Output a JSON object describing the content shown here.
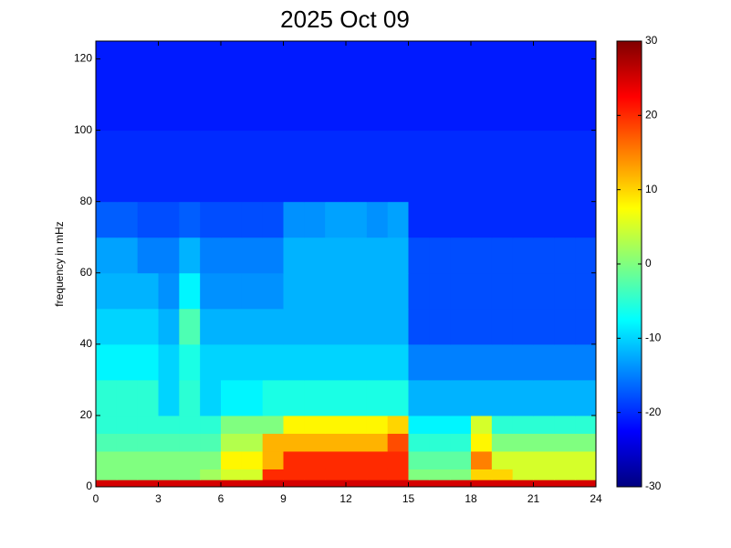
{
  "chart_data": {
    "type": "heatmap",
    "title": "2025 Oct 09",
    "y_label": "frequency in mHz",
    "colormap": "jet",
    "xbins": [
      0,
      1,
      2,
      3,
      4,
      5,
      6,
      7,
      8,
      9,
      10,
      11,
      12,
      13,
      14,
      15,
      16,
      17,
      18,
      19,
      20,
      21,
      22,
      23,
      24
    ],
    "ybins": [
      0,
      2,
      5,
      10,
      15,
      20,
      30,
      40,
      50,
      60,
      70,
      80,
      100,
      125
    ],
    "values": [
      [
        25,
        25,
        25,
        25,
        25,
        25,
        25,
        25,
        25,
        25,
        25,
        25,
        25,
        25,
        25,
        25,
        25,
        25,
        25,
        25,
        25,
        25,
        25,
        25
      ],
      [
        0,
        0,
        0,
        0,
        0,
        2,
        5,
        5,
        20,
        20,
        20,
        20,
        20,
        20,
        20,
        0,
        0,
        0,
        10,
        10,
        5,
        5,
        5,
        5
      ],
      [
        0,
        0,
        0,
        0,
        0,
        0,
        8,
        8,
        12,
        20,
        20,
        20,
        20,
        20,
        20,
        -2,
        -2,
        -2,
        15,
        5,
        5,
        5,
        5,
        5
      ],
      [
        -3,
        -3,
        -3,
        -3,
        -3,
        -3,
        3,
        3,
        12,
        12,
        12,
        12,
        12,
        12,
        18,
        -5,
        -5,
        -5,
        8,
        0,
        0,
        0,
        0,
        0
      ],
      [
        -5,
        -5,
        -5,
        -5,
        -5,
        -5,
        0,
        0,
        0,
        8,
        8,
        8,
        8,
        8,
        10,
        -8,
        -8,
        -8,
        5,
        -5,
        -5,
        -5,
        -5,
        -5
      ],
      [
        -5,
        -5,
        -5,
        -10,
        -5,
        -10,
        -8,
        -8,
        -6,
        -6,
        -6,
        -6,
        -6,
        -6,
        -6,
        -12,
        -12,
        -12,
        -12,
        -12,
        -12,
        -12,
        -12,
        -12
      ],
      [
        -8,
        -8,
        -8,
        -10,
        -6,
        -10,
        -10,
        -10,
        -10,
        -10,
        -10,
        -10,
        -10,
        -10,
        -10,
        -15,
        -15,
        -15,
        -15,
        -15,
        -15,
        -15,
        -15,
        -15
      ],
      [
        -10,
        -10,
        -10,
        -12,
        -3,
        -12,
        -12,
        -12,
        -12,
        -12,
        -12,
        -12,
        -12,
        -12,
        -12,
        -18,
        -18,
        -18,
        -18,
        -18,
        -18,
        -18,
        -18,
        -18
      ],
      [
        -12,
        -12,
        -12,
        -14,
        -8,
        -14,
        -14,
        -14,
        -14,
        -12,
        -12,
        -12,
        -12,
        -12,
        -12,
        -18,
        -18,
        -18,
        -18,
        -18,
        -18,
        -18,
        -18,
        -18
      ],
      [
        -13,
        -13,
        -15,
        -15,
        -12,
        -15,
        -15,
        -15,
        -15,
        -12,
        -12,
        -12,
        -12,
        -12,
        -12,
        -18,
        -18,
        -18,
        -18,
        -18,
        -18,
        -18,
        -18,
        -18
      ],
      [
        -17,
        -17,
        -18,
        -18,
        -17,
        -18,
        -18,
        -18,
        -18,
        -14,
        -14,
        -13,
        -13,
        -14,
        -13,
        -20,
        -20,
        -20,
        -20,
        -20,
        -20,
        -20,
        -20,
        -20
      ],
      [
        -20,
        -20,
        -20,
        -20,
        -20,
        -20,
        -20,
        -20,
        -20,
        -20,
        -20,
        -20,
        -20,
        -20,
        -20,
        -20,
        -20,
        -20,
        -20,
        -20,
        -20,
        -20,
        -20,
        -20
      ],
      [
        -21,
        -21,
        -21,
        -21,
        -21,
        -21,
        -21,
        -21,
        -21,
        -21,
        -21,
        -21,
        -21,
        -21,
        -21,
        -21,
        -21,
        -21,
        -21,
        -21,
        -21,
        -21,
        -21,
        -21
      ]
    ],
    "xlim": [
      0,
      24
    ],
    "xticks": [
      0,
      3,
      6,
      9,
      12,
      15,
      18,
      21,
      24
    ],
    "ylim": [
      0,
      125
    ],
    "yticks": [
      0,
      20,
      40,
      60,
      80,
      100,
      120
    ],
    "clim": [
      -30,
      30
    ],
    "cticks": [
      -30,
      -20,
      -10,
      0,
      10,
      20,
      30
    ]
  }
}
